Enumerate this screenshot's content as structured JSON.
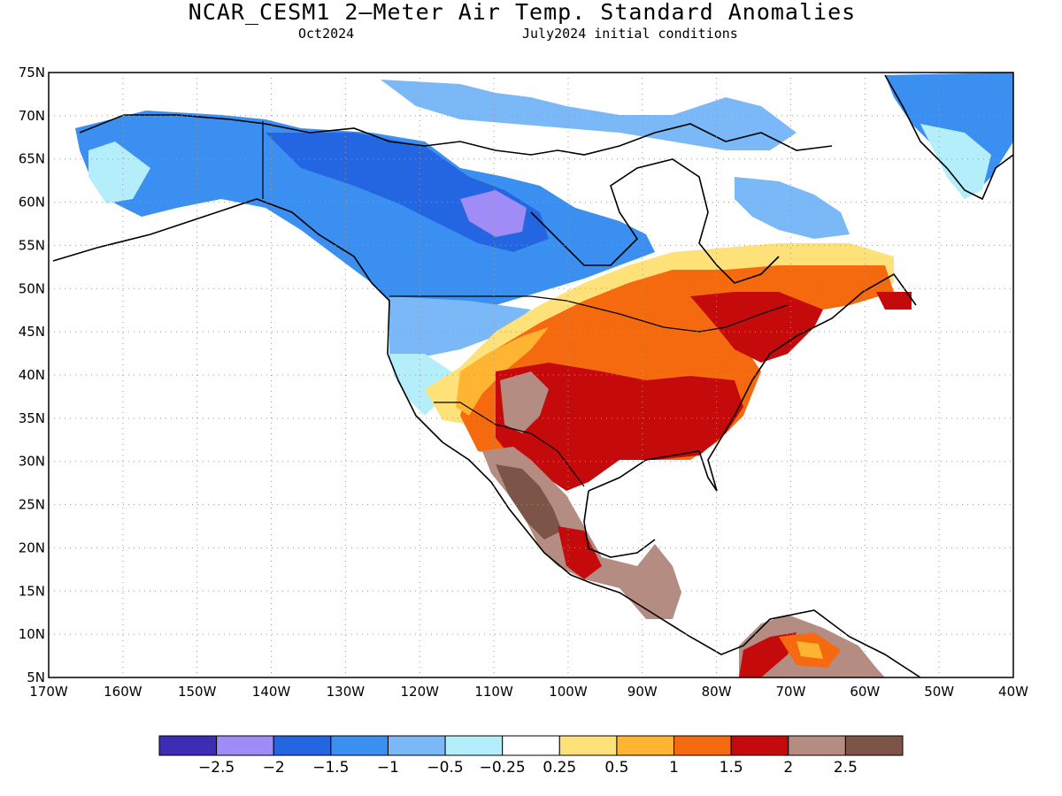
{
  "title": "NCAR_CESM1 2—Meter Air Temp. Standard Anomalies",
  "subtitle_left": "Oct2024",
  "subtitle_right": "July2024 initial conditions",
  "map": {
    "lon_range": [
      -170,
      -40
    ],
    "lat_range": [
      5,
      75
    ],
    "lat_ticks": [
      "75N",
      "70N",
      "65N",
      "60N",
      "55N",
      "50N",
      "45N",
      "40N",
      "35N",
      "30N",
      "25N",
      "20N",
      "15N",
      "10N",
      "5N"
    ],
    "lon_ticks": [
      "170W",
      "160W",
      "150W",
      "140W",
      "130W",
      "120W",
      "110W",
      "100W",
      "90W",
      "80W",
      "70W",
      "60W",
      "50W",
      "40W"
    ],
    "grid": "dotted"
  },
  "legend": {
    "labels": [
      "−2.5",
      "−2",
      "−1.5",
      "−1",
      "−0.5",
      "−0.25",
      "0.25",
      "0.5",
      "1",
      "1.5",
      "2",
      "2.5"
    ],
    "colors": [
      "#3c2db4",
      "#9f8cf7",
      "#2466e2",
      "#3b8ff0",
      "#7ab8f7",
      "#b4eefa",
      "#ffffff",
      "#ffe17a",
      "#ffb432",
      "#f56a0e",
      "#c40a0a",
      "#b48c82",
      "#7c5448"
    ]
  }
}
